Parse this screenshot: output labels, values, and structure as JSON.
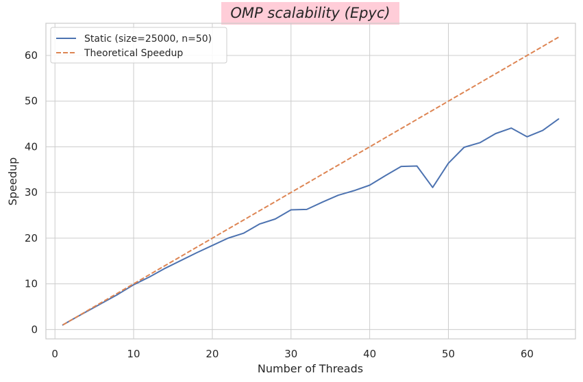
{
  "chart_data": {
    "type": "line",
    "title": "OMP scalability (Epyc)",
    "xlabel": "Number of Threads",
    "ylabel": "Speedup",
    "xlim": [
      -1.15,
      66.15
    ],
    "ylim": [
      -2.05,
      67.05
    ],
    "xticks": [
      0,
      10,
      20,
      30,
      40,
      50,
      60
    ],
    "yticks": [
      0,
      10,
      20,
      30,
      40,
      50,
      60
    ],
    "grid": true,
    "legend_position": "upper-left",
    "title_background": "#ffcdd8",
    "series": [
      {
        "name": "Static (size=25000, n=50)",
        "color": "#4c72b0",
        "linestyle": "solid",
        "x": [
          1,
          2,
          4,
          6,
          8,
          10,
          12,
          14,
          16,
          18,
          20,
          22,
          24,
          26,
          28,
          30,
          32,
          34,
          36,
          38,
          40,
          42,
          44,
          46,
          48,
          50,
          52,
          54,
          56,
          58,
          60,
          62,
          64
        ],
        "values": [
          1.0,
          2.0,
          3.9,
          5.8,
          7.7,
          9.8,
          11.5,
          13.4,
          15.1,
          16.8,
          18.4,
          20.0,
          21.1,
          23.1,
          24.2,
          26.2,
          26.3,
          27.9,
          29.4,
          30.4,
          31.6,
          33.7,
          35.7,
          35.8,
          31.1,
          36.4,
          39.9,
          40.9,
          42.9,
          44.1,
          42.2,
          43.6,
          46.1
        ]
      },
      {
        "name": "Theoretical Speedup",
        "color": "#dd8452",
        "linestyle": "dashed",
        "x": [
          1,
          64
        ],
        "values": [
          1,
          64
        ]
      }
    ]
  }
}
